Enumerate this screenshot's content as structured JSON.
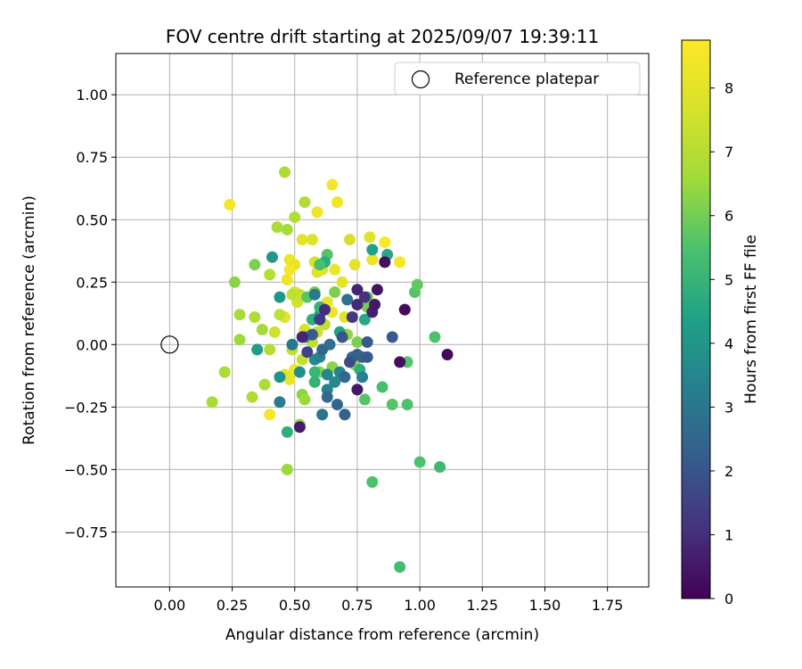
{
  "chart_data": {
    "type": "scatter",
    "title": "FOV centre drift starting at 2025/09/07 19:39:11",
    "xlabel": "Angular distance from reference (arcmin)",
    "ylabel": "Rotation from reference (arcmin)",
    "xlim": [
      -0.215,
      1.915
    ],
    "ylim": [
      -0.97,
      1.165
    ],
    "xticks": [
      "0.00",
      "0.25",
      "0.50",
      "0.75",
      "1.00",
      "1.25",
      "1.50",
      "1.75"
    ],
    "yticks": [
      "1.00",
      "0.75",
      "0.50",
      "0.25",
      "0.00",
      "−0.25",
      "−0.50",
      "−0.75"
    ],
    "grid": true,
    "legend": {
      "position": "top-right",
      "entries": [
        "Reference platepar"
      ]
    },
    "colorbar": {
      "label": "Hours from first FF file",
      "colormap": "viridis",
      "range": [
        0,
        8.75
      ],
      "ticks": [
        "0",
        "1",
        "2",
        "3",
        "4",
        "5",
        "6",
        "7",
        "8"
      ]
    },
    "reference_point": {
      "x": 0.0,
      "y": 0.0
    },
    "points": [
      {
        "x": 0.24,
        "y": 0.56,
        "c": 8.6
      },
      {
        "x": 0.65,
        "y": 0.64,
        "c": 8.5
      },
      {
        "x": 0.67,
        "y": 0.57,
        "c": 8.4
      },
      {
        "x": 0.59,
        "y": 0.53,
        "c": 8.3
      },
      {
        "x": 0.86,
        "y": 0.41,
        "c": 8.7
      },
      {
        "x": 0.92,
        "y": 0.33,
        "c": 8.6
      },
      {
        "x": 0.48,
        "y": 0.34,
        "c": 8.3
      },
      {
        "x": 0.5,
        "y": 0.32,
        "c": 8.2
      },
      {
        "x": 0.48,
        "y": 0.3,
        "c": 8.5
      },
      {
        "x": 0.57,
        "y": 0.42,
        "c": 7.8
      },
      {
        "x": 0.72,
        "y": 0.42,
        "c": 7.6
      },
      {
        "x": 0.8,
        "y": 0.43,
        "c": 7.9
      },
      {
        "x": 0.81,
        "y": 0.34,
        "c": 8.2
      },
      {
        "x": 0.74,
        "y": 0.32,
        "c": 8.0
      },
      {
        "x": 0.66,
        "y": 0.3,
        "c": 8.3
      },
      {
        "x": 0.69,
        "y": 0.25,
        "c": 8.1
      },
      {
        "x": 0.47,
        "y": 0.26,
        "c": 8.4
      },
      {
        "x": 0.46,
        "y": 0.11,
        "c": 8.0
      },
      {
        "x": 0.5,
        "y": -0.1,
        "c": 8.4
      },
      {
        "x": 0.48,
        "y": -0.14,
        "c": 8.3
      },
      {
        "x": 0.46,
        "y": -0.12,
        "c": 8.1
      },
      {
        "x": 0.4,
        "y": -0.28,
        "c": 8.6
      },
      {
        "x": 0.61,
        "y": -0.28,
        "c": 8.2
      },
      {
        "x": 0.65,
        "y": 0.13,
        "c": 8.3
      },
      {
        "x": 0.7,
        "y": 0.11,
        "c": 8.0
      },
      {
        "x": 0.63,
        "y": 0.17,
        "c": 8.2
      },
      {
        "x": 0.53,
        "y": 0.42,
        "c": 8.0
      },
      {
        "x": 0.58,
        "y": 0.33,
        "c": 7.7
      },
      {
        "x": 0.59,
        "y": 0.29,
        "c": 7.8
      },
      {
        "x": 0.61,
        "y": 0.3,
        "c": 7.9
      },
      {
        "x": 0.5,
        "y": 0.21,
        "c": 7.7
      },
      {
        "x": 0.46,
        "y": 0.69,
        "c": 6.8
      },
      {
        "x": 0.54,
        "y": 0.57,
        "c": 6.9
      },
      {
        "x": 0.5,
        "y": 0.51,
        "c": 6.9
      },
      {
        "x": 0.43,
        "y": 0.47,
        "c": 6.8
      },
      {
        "x": 0.47,
        "y": 0.46,
        "c": 6.7
      },
      {
        "x": 0.34,
        "y": 0.32,
        "c": 6.1
      },
      {
        "x": 0.4,
        "y": 0.28,
        "c": 7.0
      },
      {
        "x": 0.26,
        "y": 0.25,
        "c": 6.3
      },
      {
        "x": 0.28,
        "y": 0.12,
        "c": 6.7
      },
      {
        "x": 0.34,
        "y": 0.11,
        "c": 6.9
      },
      {
        "x": 0.28,
        "y": 0.02,
        "c": 6.5
      },
      {
        "x": 0.37,
        "y": 0.06,
        "c": 6.6
      },
      {
        "x": 0.42,
        "y": 0.05,
        "c": 7.5
      },
      {
        "x": 0.44,
        "y": 0.12,
        "c": 7.2
      },
      {
        "x": 0.51,
        "y": 0.17,
        "c": 7.5
      },
      {
        "x": 0.52,
        "y": 0.2,
        "c": 7.4
      },
      {
        "x": 0.49,
        "y": 0.2,
        "c": 7.2
      },
      {
        "x": 0.54,
        "y": 0.06,
        "c": 7.6
      },
      {
        "x": 0.57,
        "y": 0.01,
        "c": 7.2
      },
      {
        "x": 0.59,
        "y": 0.05,
        "c": 7.4
      },
      {
        "x": 0.62,
        "y": 0.08,
        "c": 7.3
      },
      {
        "x": 0.4,
        "y": -0.02,
        "c": 7.0
      },
      {
        "x": 0.49,
        "y": -0.02,
        "c": 7.2
      },
      {
        "x": 0.53,
        "y": -0.06,
        "c": 7.3
      },
      {
        "x": 0.22,
        "y": -0.11,
        "c": 6.8
      },
      {
        "x": 0.17,
        "y": -0.23,
        "c": 6.7
      },
      {
        "x": 0.33,
        "y": -0.21,
        "c": 6.9
      },
      {
        "x": 0.38,
        "y": -0.16,
        "c": 6.8
      },
      {
        "x": 0.47,
        "y": -0.5,
        "c": 6.5
      },
      {
        "x": 0.52,
        "y": -0.32,
        "c": 6.5
      },
      {
        "x": 0.6,
        "y": -0.11,
        "c": 6.3
      },
      {
        "x": 0.65,
        "y": -0.09,
        "c": 6.3
      },
      {
        "x": 0.71,
        "y": 0.04,
        "c": 6.4
      },
      {
        "x": 0.74,
        "y": -0.08,
        "c": 6.4
      },
      {
        "x": 0.75,
        "y": 0.01,
        "c": 6.1
      },
      {
        "x": 0.53,
        "y": -0.2,
        "c": 6.3
      },
      {
        "x": 0.54,
        "y": -0.22,
        "c": 6.5
      },
      {
        "x": 0.66,
        "y": 0.21,
        "c": 6.1
      },
      {
        "x": 0.58,
        "y": 0.21,
        "c": 6.0
      },
      {
        "x": 0.79,
        "y": 0.15,
        "c": 6.0
      },
      {
        "x": 0.79,
        "y": 0.19,
        "c": 5.8
      },
      {
        "x": 0.63,
        "y": 0.36,
        "c": 5.6
      },
      {
        "x": 0.55,
        "y": 0.19,
        "c": 5.6
      },
      {
        "x": 0.98,
        "y": 0.21,
        "c": 5.6
      },
      {
        "x": 0.99,
        "y": 0.24,
        "c": 5.8
      },
      {
        "x": 1.06,
        "y": 0.03,
        "c": 5.5
      },
      {
        "x": 0.95,
        "y": -0.07,
        "c": 5.6
      },
      {
        "x": 0.85,
        "y": -0.17,
        "c": 5.4
      },
      {
        "x": 0.89,
        "y": -0.24,
        "c": 5.6
      },
      {
        "x": 0.95,
        "y": -0.24,
        "c": 5.5
      },
      {
        "x": 0.78,
        "y": -0.22,
        "c": 5.6
      },
      {
        "x": 1.0,
        "y": -0.47,
        "c": 5.5
      },
      {
        "x": 1.08,
        "y": -0.49,
        "c": 5.2
      },
      {
        "x": 0.81,
        "y": -0.55,
        "c": 5.5
      },
      {
        "x": 0.92,
        "y": -0.89,
        "c": 5.3
      },
      {
        "x": 0.47,
        "y": -0.35,
        "c": 4.8
      },
      {
        "x": 0.58,
        "y": -0.11,
        "c": 5.1
      },
      {
        "x": 0.58,
        "y": -0.15,
        "c": 4.9
      },
      {
        "x": 0.76,
        "y": -0.1,
        "c": 4.8
      },
      {
        "x": 0.87,
        "y": 0.36,
        "c": 4.6
      },
      {
        "x": 0.62,
        "y": 0.33,
        "c": 4.7
      },
      {
        "x": 0.6,
        "y": 0.32,
        "c": 5.4
      },
      {
        "x": 0.57,
        "y": 0.1,
        "c": 4.8
      },
      {
        "x": 0.6,
        "y": 0.12,
        "c": 4.2
      },
      {
        "x": 0.6,
        "y": 0.15,
        "c": 5.0
      },
      {
        "x": 0.68,
        "y": 0.05,
        "c": 4.4
      },
      {
        "x": 0.78,
        "y": 0.1,
        "c": 4.6
      },
      {
        "x": 0.44,
        "y": 0.19,
        "c": 4.0
      },
      {
        "x": 0.35,
        "y": -0.02,
        "c": 4.2
      },
      {
        "x": 0.41,
        "y": 0.35,
        "c": 4.1
      },
      {
        "x": 0.81,
        "y": 0.38,
        "c": 4.4
      },
      {
        "x": 0.44,
        "y": -0.13,
        "c": 3.9
      },
      {
        "x": 0.52,
        "y": -0.11,
        "c": 3.8
      },
      {
        "x": 0.58,
        "y": -0.06,
        "c": 3.7
      },
      {
        "x": 0.63,
        "y": -0.12,
        "c": 3.5
      },
      {
        "x": 0.63,
        "y": -0.18,
        "c": 3.3
      },
      {
        "x": 0.6,
        "y": -0.05,
        "c": 3.4
      },
      {
        "x": 0.44,
        "y": -0.23,
        "c": 3.2
      },
      {
        "x": 0.61,
        "y": -0.28,
        "c": 3.0
      },
      {
        "x": 0.68,
        "y": -0.11,
        "c": 3.5
      },
      {
        "x": 0.66,
        "y": -0.15,
        "c": 3.6
      },
      {
        "x": 0.77,
        "y": -0.13,
        "c": 3.3
      },
      {
        "x": 0.58,
        "y": 0.2,
        "c": 3.1
      },
      {
        "x": 0.54,
        "y": 0.03,
        "c": 3.0
      },
      {
        "x": 0.49,
        "y": 0.0,
        "c": 3.1
      },
      {
        "x": 0.71,
        "y": 0.18,
        "c": 2.9
      },
      {
        "x": 0.64,
        "y": 0.0,
        "c": 2.8
      },
      {
        "x": 0.63,
        "y": -0.21,
        "c": 2.6
      },
      {
        "x": 0.67,
        "y": -0.24,
        "c": 2.5
      },
      {
        "x": 0.7,
        "y": -0.28,
        "c": 2.4
      },
      {
        "x": 0.7,
        "y": -0.13,
        "c": 2.6
      },
      {
        "x": 0.73,
        "y": -0.05,
        "c": 2.5
      },
      {
        "x": 0.77,
        "y": -0.05,
        "c": 2.3
      },
      {
        "x": 0.79,
        "y": -0.05,
        "c": 2.1
      },
      {
        "x": 0.79,
        "y": 0.01,
        "c": 2.2
      },
      {
        "x": 0.89,
        "y": 0.03,
        "c": 2.1
      },
      {
        "x": 0.61,
        "y": -0.02,
        "c": 2.5
      },
      {
        "x": 0.69,
        "y": 0.03,
        "c": 2.0
      },
      {
        "x": 0.72,
        "y": -0.07,
        "c": 1.8
      },
      {
        "x": 0.75,
        "y": -0.04,
        "c": 2.3
      },
      {
        "x": 0.57,
        "y": 0.04,
        "c": 2.2
      },
      {
        "x": 0.55,
        "y": -0.03,
        "c": 1.5
      },
      {
        "x": 0.6,
        "y": 0.1,
        "c": 1.3
      },
      {
        "x": 0.62,
        "y": 0.14,
        "c": 1.0
      },
      {
        "x": 0.73,
        "y": 0.11,
        "c": 1.2
      },
      {
        "x": 0.75,
        "y": 0.16,
        "c": 0.9
      },
      {
        "x": 0.81,
        "y": 0.13,
        "c": 0.7
      },
      {
        "x": 0.82,
        "y": 0.16,
        "c": 0.5
      },
      {
        "x": 0.83,
        "y": 0.22,
        "c": 0.4
      },
      {
        "x": 0.75,
        "y": 0.22,
        "c": 0.8
      },
      {
        "x": 0.78,
        "y": 0.19,
        "c": 1.1
      },
      {
        "x": 0.86,
        "y": 0.33,
        "c": 0.3
      },
      {
        "x": 0.94,
        "y": 0.14,
        "c": 0.2
      },
      {
        "x": 0.92,
        "y": -0.07,
        "c": 0.3
      },
      {
        "x": 1.11,
        "y": -0.04,
        "c": 0.2
      },
      {
        "x": 0.75,
        "y": -0.18,
        "c": 0.5
      },
      {
        "x": 0.52,
        "y": -0.33,
        "c": 0.6
      },
      {
        "x": 0.53,
        "y": 0.03,
        "c": 0.8
      }
    ]
  }
}
